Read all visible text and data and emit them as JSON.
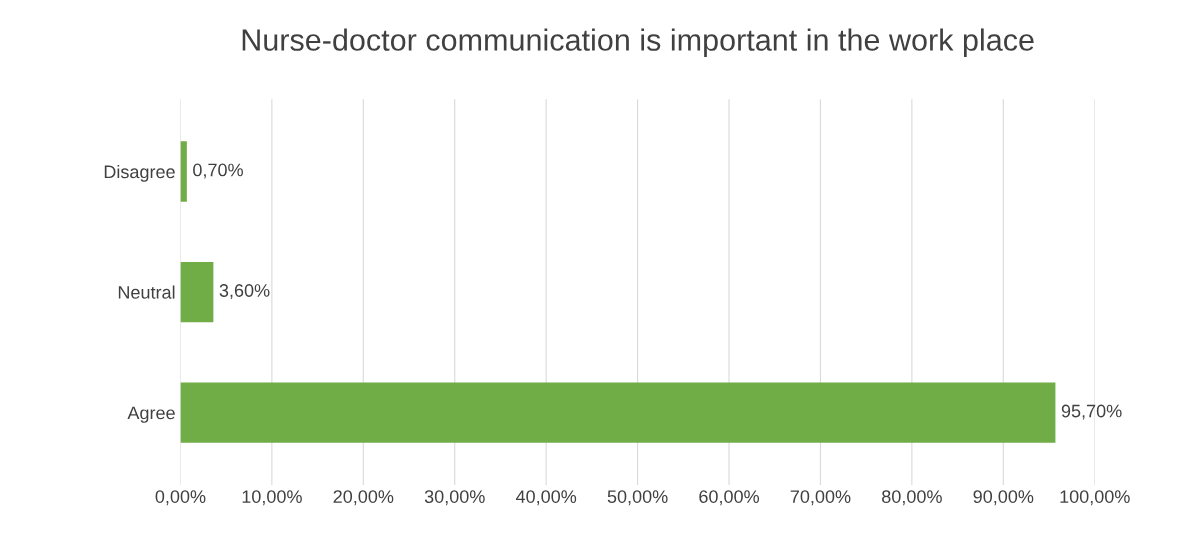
{
  "chart_data": {
    "type": "bar",
    "orientation": "horizontal",
    "title": "Nurse-doctor communication is important in the work place",
    "categories": [
      "Disagree",
      "Neutral",
      "Agree"
    ],
    "values": [
      0.7,
      3.6,
      95.7
    ],
    "color": "#70ad47",
    "value_labels": [
      "0,70%",
      "3,60%",
      "95,70%"
    ],
    "xlim": [
      0,
      100
    ],
    "xticks": [
      {
        "value": 0,
        "label": "0,00%"
      },
      {
        "value": 10,
        "label": "10,00%"
      },
      {
        "value": 20,
        "label": "20,00%"
      },
      {
        "value": 30,
        "label": "30,00%"
      },
      {
        "value": 40,
        "label": "40,00%"
      },
      {
        "value": 50,
        "label": "50,00%"
      },
      {
        "value": 60,
        "label": "60,00%"
      },
      {
        "value": 70,
        "label": "70,00%"
      },
      {
        "value": 80,
        "label": "80,00%"
      },
      {
        "value": 90,
        "label": "90,00%"
      },
      {
        "value": 100,
        "label": "100,00%"
      }
    ],
    "grid": "x"
  }
}
